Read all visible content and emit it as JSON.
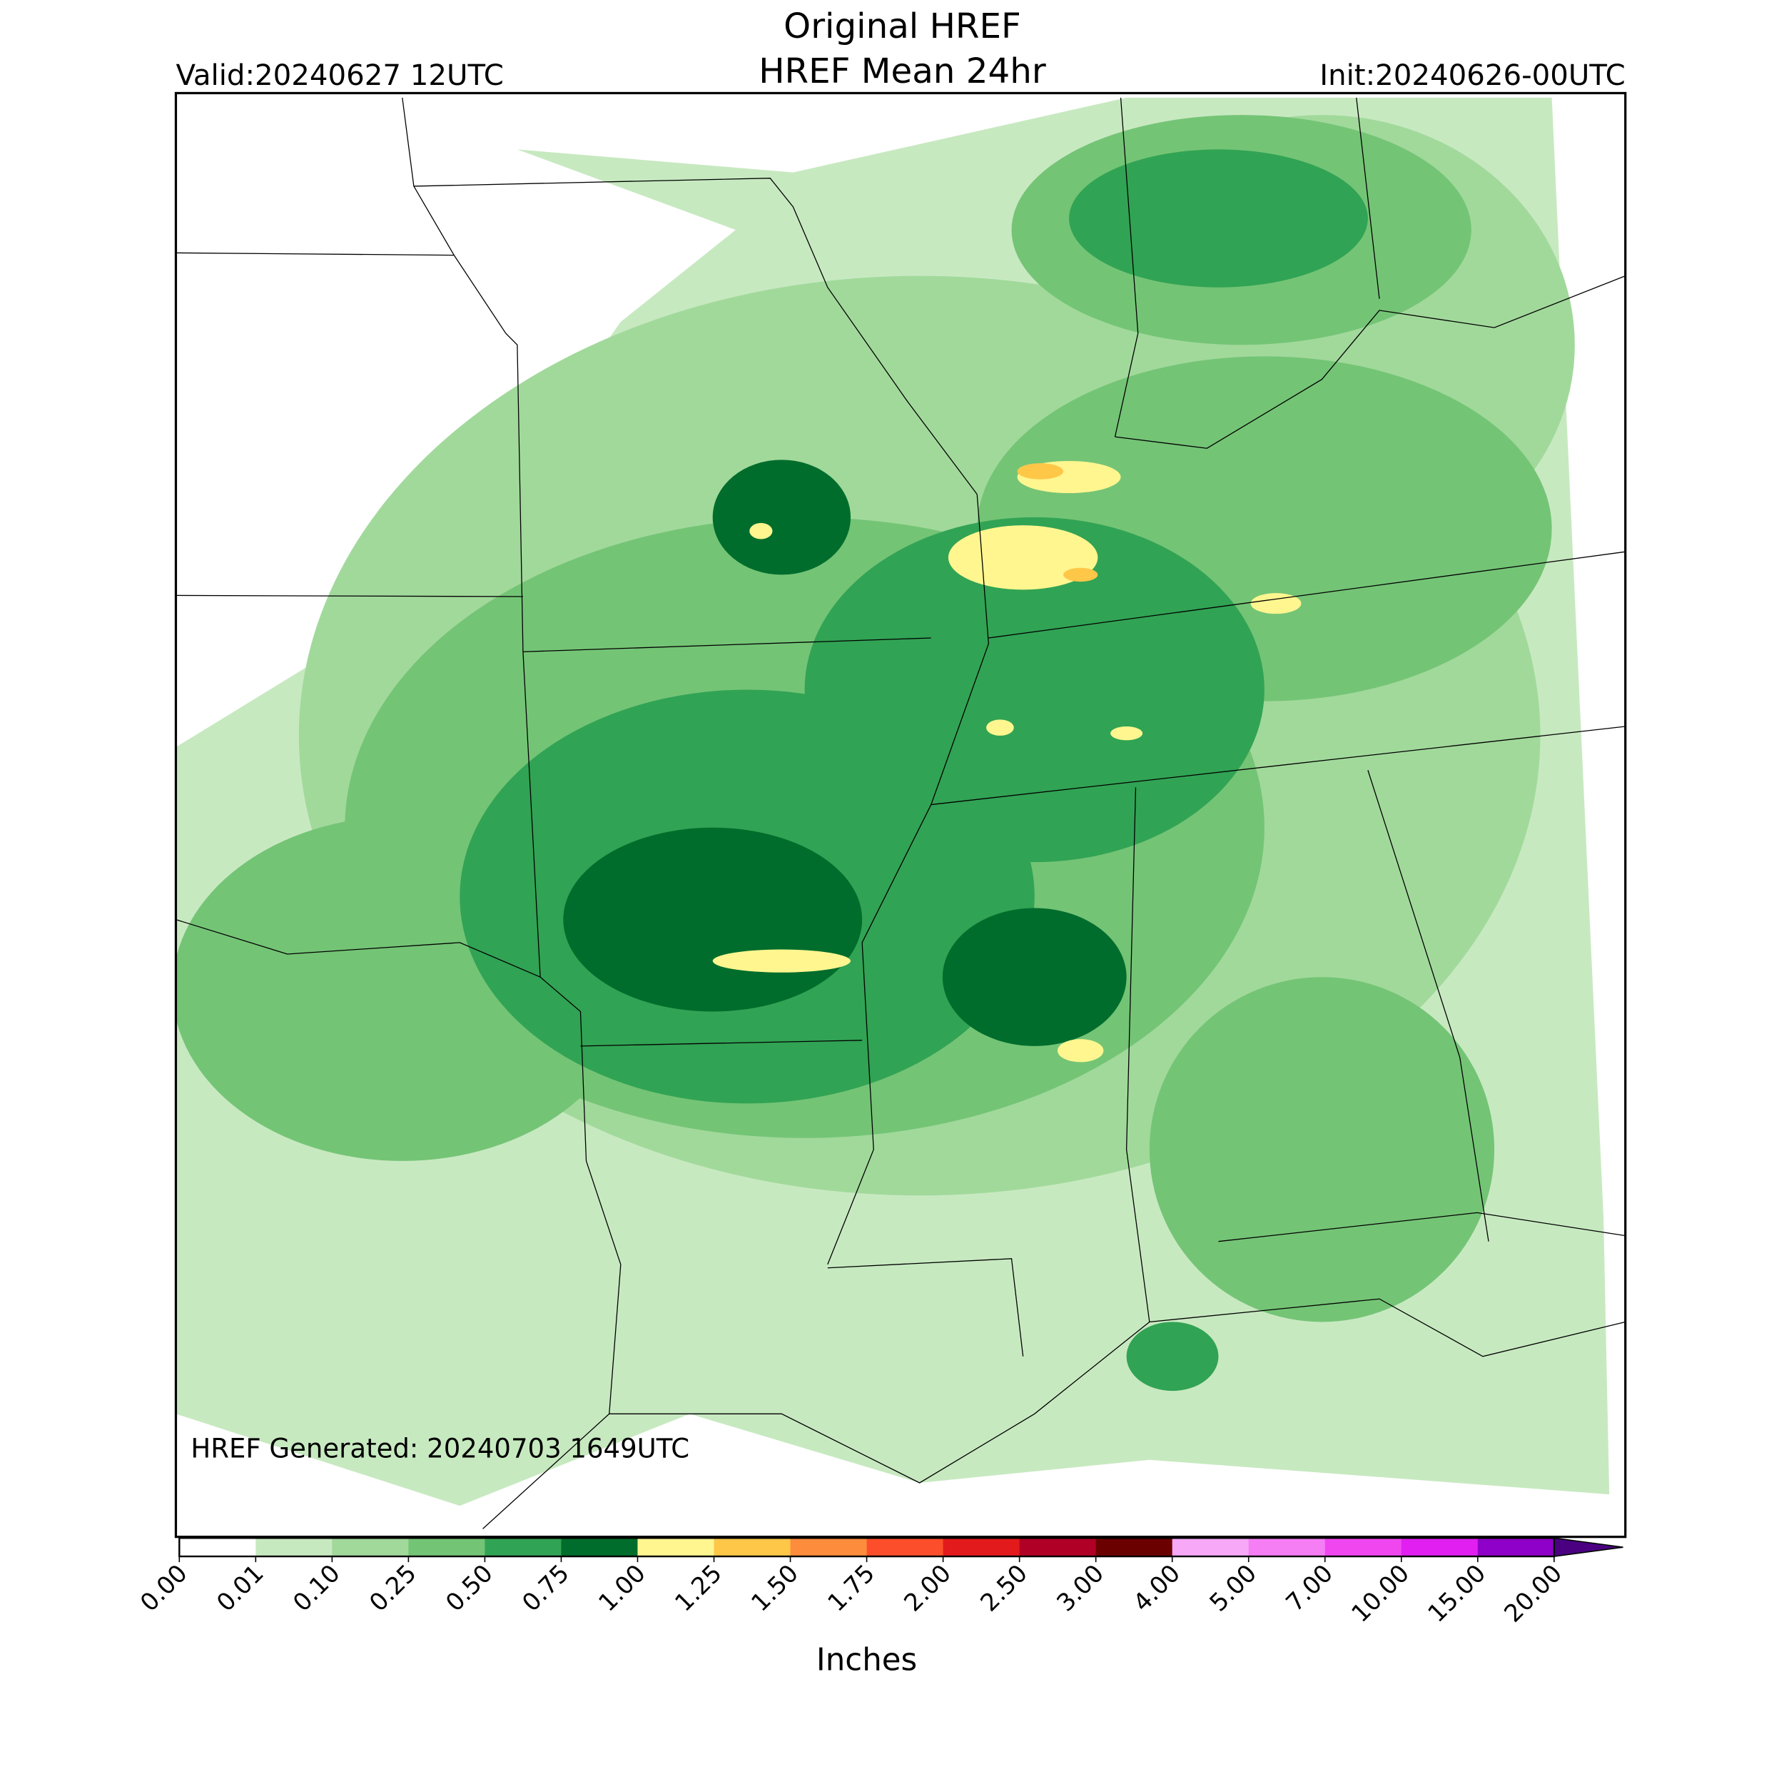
{
  "header": {
    "title": "Original HREF",
    "subtitle": "HREF Mean 24hr",
    "valid": "Valid:20240627 12UTC",
    "init": "Init:20240626-00UTC"
  },
  "map": {
    "note": "HREF Generated: 20240703 1649UTC"
  },
  "colorbar": {
    "ticks": [
      "0.00",
      "0.01",
      "0.10",
      "0.25",
      "0.50",
      "0.75",
      "1.00",
      "1.25",
      "1.50",
      "1.75",
      "2.00",
      "2.50",
      "3.00",
      "4.00",
      "5.00",
      "7.00",
      "10.00",
      "15.00",
      "20.00"
    ],
    "colors": [
      "#ffffff",
      "#c7e9c0",
      "#a1d99b",
      "#74c476",
      "#31a354",
      "#006d2c",
      "#fff68f",
      "#ffc748",
      "#fd8d3c",
      "#fc4e2a",
      "#e31a1c",
      "#b10026",
      "#6b0000",
      "#f7a8f7",
      "#f57ef5",
      "#f046f0",
      "#e01ff0",
      "#8f00c8",
      "#4b0082"
    ],
    "label": "Inches"
  }
}
